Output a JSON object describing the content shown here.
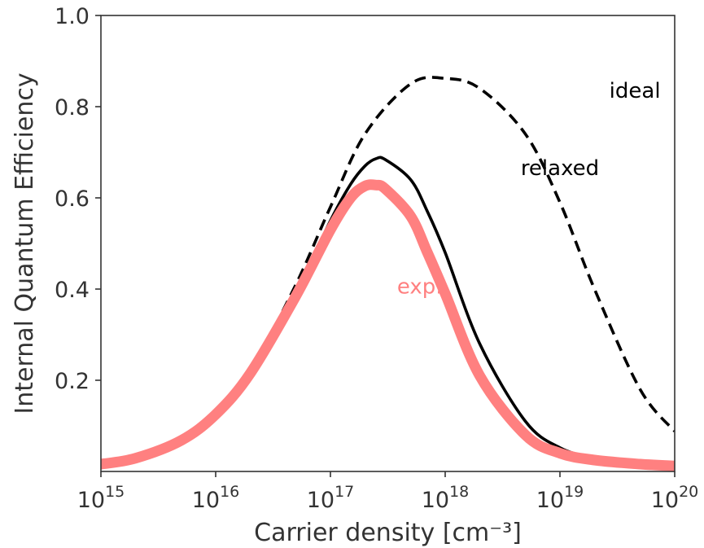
{
  "chart_data": {
    "type": "line",
    "xscale": "log",
    "xlim": [
      1000000000000000.0,
      1e+20
    ],
    "ylim": [
      0.0,
      1.0
    ],
    "xlabel": "Carrier density [cm⁻³]",
    "ylabel": "Internal Quantum Efficiency",
    "grid": false,
    "x_ticks": [
      {
        "value": 1000000000000000.0,
        "base": "10",
        "exp": "15"
      },
      {
        "value": 1e+16,
        "base": "10",
        "exp": "16"
      },
      {
        "value": 1e+17,
        "base": "10",
        "exp": "17"
      },
      {
        "value": 1e+18,
        "base": "10",
        "exp": "18"
      },
      {
        "value": 1e+19,
        "base": "10",
        "exp": "19"
      },
      {
        "value": 1e+20,
        "base": "10",
        "exp": "20"
      }
    ],
    "y_ticks": [
      {
        "value": 0.2,
        "label": "0.2"
      },
      {
        "value": 0.4,
        "label": "0.4"
      },
      {
        "value": 0.6,
        "label": "0.6"
      },
      {
        "value": 0.8,
        "label": "0.8"
      },
      {
        "value": 1.0,
        "label": "1.0"
      }
    ],
    "series": [
      {
        "name": "ideal",
        "color": "#000000",
        "style": "dashed",
        "x": [
          1000000000000000.0,
          2000000000000000.0,
          5000000000000000.0,
          1e+16,
          2e+16,
          5e+16,
          1e+17,
          2e+17,
          5e+17,
          1e+18,
          2e+18,
          5e+18,
          1e+19,
          2e+19,
          5e+19,
          1e+20
        ],
        "y": [
          0.016,
          0.03,
          0.07,
          0.127,
          0.22,
          0.41,
          0.58,
          0.74,
          0.85,
          0.862,
          0.84,
          0.74,
          0.59,
          0.4,
          0.18,
          0.088
        ]
      },
      {
        "name": "relaxed",
        "color": "#000000",
        "style": "solid",
        "x": [
          1000000000000000.0,
          2000000000000000.0,
          5000000000000000.0,
          1e+16,
          2e+16,
          5e+16,
          1e+17,
          1.5e+17,
          2e+17,
          2.5e+17,
          3e+17,
          5e+17,
          7e+17,
          1e+18,
          2e+18,
          5e+18,
          1e+19,
          2e+19,
          5e+19,
          1e+20
        ],
        "y": [
          0.016,
          0.029,
          0.068,
          0.125,
          0.215,
          0.39,
          0.55,
          0.63,
          0.67,
          0.686,
          0.684,
          0.64,
          0.57,
          0.48,
          0.28,
          0.11,
          0.052,
          0.03,
          0.018,
          0.013
        ]
      },
      {
        "name": "exp.",
        "color": "#ff8080",
        "style": "thick",
        "x": [
          1000000000000000.0,
          2000000000000000.0,
          5000000000000000.0,
          1e+16,
          2e+16,
          5e+16,
          1e+17,
          1.5e+17,
          2e+17,
          2.5e+17,
          3e+17,
          5e+17,
          7e+17,
          1e+18,
          2e+18,
          5e+18,
          1e+19,
          2e+19,
          5e+19,
          1e+20
        ],
        "y": [
          0.016,
          0.029,
          0.068,
          0.125,
          0.215,
          0.385,
          0.53,
          0.6,
          0.626,
          0.628,
          0.62,
          0.56,
          0.48,
          0.39,
          0.21,
          0.08,
          0.04,
          0.025,
          0.016,
          0.012
        ]
      }
    ],
    "annotations": [
      {
        "text": "ideal",
        "x": 4.5e+19,
        "y": 0.82,
        "color": "#000000"
      },
      {
        "text": "relaxed",
        "x": 1e+19,
        "y": 0.65,
        "color": "#000000"
      },
      {
        "text": "exp.",
        "x": 6e+17,
        "y": 0.39,
        "color": "#ff8080"
      }
    ]
  }
}
